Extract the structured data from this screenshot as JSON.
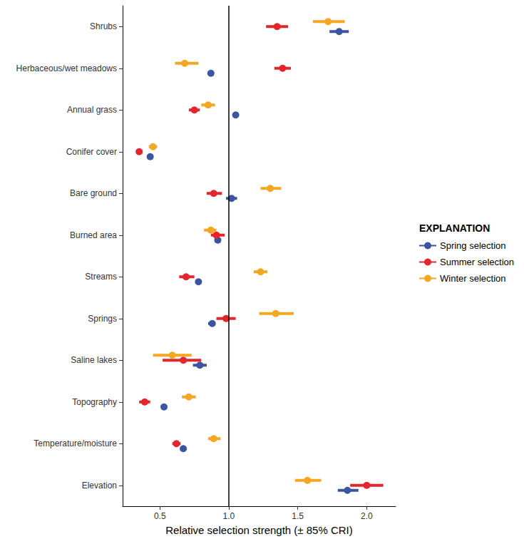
{
  "chart_data": {
    "type": "scatter",
    "orientation": "horizontal",
    "x_label": "Relative selection strength (± 85% CRI)",
    "legend_title": "EXPLANATION",
    "legend": "right",
    "grid": false,
    "reference_line": 1.0,
    "categories": [
      "Shrubs",
      "Herbaceous/wet meadows",
      "Annual grass",
      "Conifer cover",
      "Bare ground",
      "Burned area",
      "Streams",
      "Springs",
      "Saline lakes",
      "Topography",
      "Temperature/moisture",
      "Elevation"
    ],
    "xlim": [
      0.23,
      2.21
    ],
    "xticks": [
      {
        "value": 0.5,
        "label": "0.5"
      },
      {
        "value": 1.0,
        "label": "1.0"
      },
      {
        "value": 1.5,
        "label": "1.5"
      },
      {
        "value": 2.0,
        "label": "2.0"
      }
    ],
    "series": [
      {
        "name": "Spring selection",
        "color": "#3b55a0",
        "marker": "circle",
        "values": [
          1.8,
          0.87,
          1.05,
          0.43,
          1.02,
          0.92,
          0.78,
          0.88,
          0.79,
          0.53,
          0.67,
          1.86
        ],
        "ci_lower": [
          1.73,
          0.86,
          1.04,
          0.42,
          0.98,
          0.9,
          0.76,
          0.85,
          0.74,
          0.51,
          0.65,
          1.79
        ],
        "ci_upper": [
          1.87,
          0.88,
          1.06,
          0.44,
          1.06,
          0.94,
          0.8,
          0.9,
          0.84,
          0.55,
          0.69,
          1.94
        ]
      },
      {
        "name": "Summer selection",
        "color": "#e3262b",
        "marker": "circle",
        "values": [
          1.35,
          1.39,
          0.75,
          0.35,
          0.89,
          0.91,
          0.69,
          0.98,
          0.67,
          0.39,
          0.62,
          2.0
        ],
        "ci_lower": [
          1.27,
          1.33,
          0.71,
          0.34,
          0.84,
          0.87,
          0.64,
          0.91,
          0.52,
          0.35,
          0.59,
          1.88
        ],
        "ci_upper": [
          1.43,
          1.45,
          0.79,
          0.36,
          0.95,
          0.97,
          0.75,
          1.05,
          0.8,
          0.43,
          0.65,
          2.12
        ]
      },
      {
        "name": "Winter selection",
        "color": "#f5a623",
        "marker": "circle",
        "values": [
          1.72,
          0.68,
          0.85,
          0.45,
          1.3,
          0.87,
          1.23,
          1.34,
          0.59,
          0.71,
          0.89,
          1.57
        ],
        "ci_lower": [
          1.61,
          0.61,
          0.8,
          0.42,
          1.23,
          0.82,
          1.18,
          1.22,
          0.45,
          0.66,
          0.85,
          1.48
        ],
        "ci_upper": [
          1.84,
          0.78,
          0.9,
          0.48,
          1.38,
          0.91,
          1.28,
          1.47,
          0.73,
          0.76,
          0.94,
          1.67
        ]
      }
    ]
  }
}
